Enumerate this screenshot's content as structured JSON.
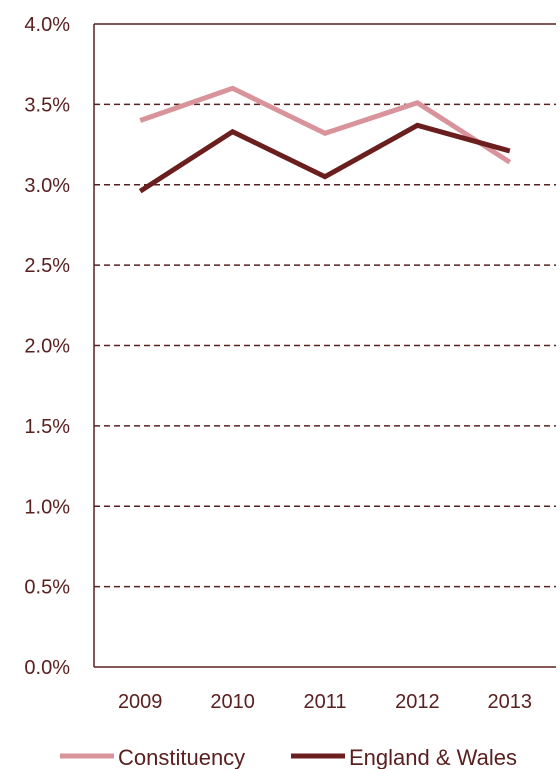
{
  "chart_data": {
    "type": "line",
    "title": "",
    "xlabel": "",
    "ylabel": "",
    "categories": [
      "2009",
      "2010",
      "2011",
      "2012",
      "2013"
    ],
    "y_ticks": [
      "0.0%",
      "0.5%",
      "1.0%",
      "1.5%",
      "2.0%",
      "2.5%",
      "3.0%",
      "3.5%",
      "4.0%"
    ],
    "ylim": [
      0,
      4.0
    ],
    "grid": "horizontal dashed",
    "legend_position": "bottom",
    "series": [
      {
        "name": "Constituency",
        "values": [
          3.4,
          3.6,
          3.32,
          3.51,
          3.14
        ],
        "color": "#d8949a"
      },
      {
        "name": "England & Wales",
        "values": [
          2.96,
          3.33,
          3.05,
          3.37,
          3.21
        ],
        "color": "#6b1e1e"
      }
    ]
  }
}
